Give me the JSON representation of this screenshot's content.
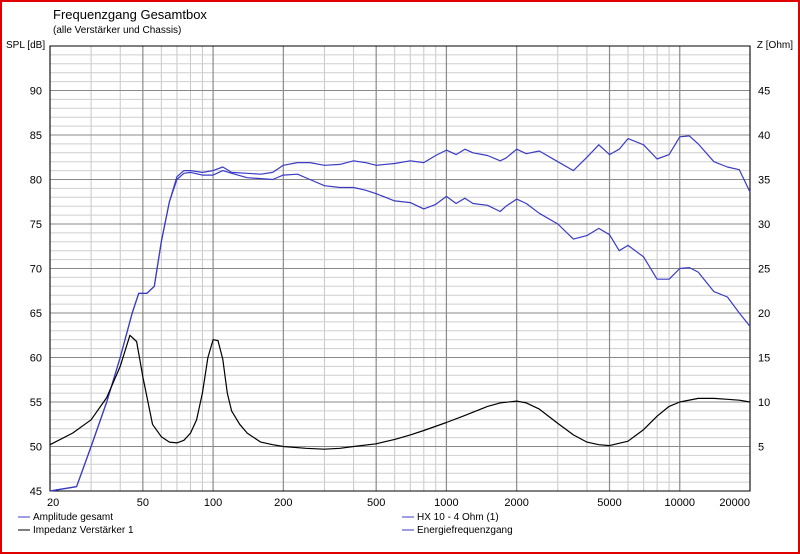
{
  "chart_data": {
    "type": "line",
    "title": "Frequenzgang Gesamtbox",
    "subtitle": "(alle Verstärker und Chassis)",
    "ylabel_left": "SPL [dB]",
    "ylabel_right": "Z [Ohm]",
    "x_scale": "log",
    "xlim": [
      20,
      20000
    ],
    "ylim_left": [
      45,
      95
    ],
    "ylim_right": [
      0,
      50
    ],
    "grid": true,
    "x_ticks": [
      20,
      50,
      100,
      200,
      500,
      1000,
      2000,
      5000,
      10000,
      20000
    ],
    "y_ticks_left": [
      45,
      50,
      55,
      60,
      65,
      70,
      75,
      80,
      85,
      90
    ],
    "y_ticks_right": [
      5,
      10,
      15,
      20,
      25,
      30,
      35,
      40,
      45
    ],
    "legend_placement": "bottom",
    "colors": {
      "amplitude": "#3b3bc4",
      "hx10": "#3b3bc4",
      "impedance": "#000000",
      "energy": "#3b3bc4",
      "frame": "#e00000"
    },
    "series": [
      {
        "name": "Amplitude gesamt",
        "axis": "left",
        "x": [
          20,
          26,
          30,
          35,
          40,
          45,
          48,
          52,
          56,
          60,
          65,
          70,
          75,
          80,
          90,
          100,
          110,
          120,
          140,
          160,
          180,
          200,
          230,
          260,
          300,
          350,
          400,
          450,
          500,
          600,
          700,
          800,
          900,
          1000,
          1100,
          1200,
          1300,
          1500,
          1700,
          1800,
          2000,
          2200,
          2500,
          3000,
          3500,
          4000,
          4500,
          5000,
          5500,
          6000,
          7000,
          8000,
          9000,
          10000,
          11000,
          12000,
          14000,
          16000,
          18000,
          20000
        ],
        "y": [
          45,
          45.5,
          50,
          55,
          60,
          65,
          67.2,
          67.2,
          68,
          73,
          77.5,
          80,
          80.7,
          80.8,
          80.5,
          80.5,
          81,
          80.7,
          80.2,
          80.1,
          80,
          80.5,
          80.6,
          80,
          79.3,
          79.1,
          79.1,
          78.8,
          78.4,
          77.6,
          77.4,
          76.7,
          77.2,
          78.1,
          77.3,
          77.9,
          77.3,
          77.1,
          76.4,
          77,
          77.8,
          77.3,
          76.2,
          75,
          73.3,
          73.7,
          74.5,
          73.8,
          72,
          72.6,
          71.3,
          68.8,
          68.8,
          70,
          70.1,
          69.6,
          67.4,
          66.8,
          65,
          63.5
        ]
      },
      {
        "name": "HX 10 - 4 Ohm (1)",
        "axis": "left",
        "x": [
          20,
          26,
          30,
          35,
          40,
          45,
          48,
          52,
          56,
          60,
          65,
          70,
          75,
          80,
          90,
          100,
          110,
          120,
          140,
          160,
          180,
          200,
          230,
          260,
          300,
          350,
          400,
          450,
          500,
          600,
          700,
          800,
          900,
          1000,
          1100,
          1200,
          1300,
          1500,
          1700,
          1800,
          2000,
          2200,
          2500,
          3000,
          3500,
          4000,
          4500,
          5000,
          5500,
          6000,
          7000,
          8000,
          9000,
          10000,
          11000,
          12000,
          14000,
          16000,
          18000,
          20000
        ],
        "y": [
          45,
          45.5,
          50,
          55,
          60,
          65,
          67.2,
          67.2,
          68,
          73,
          77.5,
          80.3,
          81,
          81,
          80.8,
          81,
          81.4,
          80.8,
          80.7,
          80.6,
          80.8,
          81.6,
          81.9,
          81.9,
          81.6,
          81.7,
          82.1,
          81.9,
          81.6,
          81.8,
          82.1,
          81.9,
          82.7,
          83.3,
          82.8,
          83.4,
          83,
          82.7,
          82.1,
          82.4,
          83.4,
          82.9,
          83.2,
          82,
          81,
          82.5,
          83.9,
          82.8,
          83.4,
          84.6,
          83.9,
          82.3,
          82.8,
          84.8,
          84.9,
          84,
          82,
          81.4,
          81.1,
          78.6
        ]
      },
      {
        "name": "Impedanz Verstärker 1",
        "axis": "right",
        "x": [
          20,
          25,
          30,
          35,
          40,
          44,
          47,
          50,
          55,
          60,
          65,
          70,
          75,
          80,
          85,
          90,
          95,
          100,
          105,
          110,
          115,
          120,
          130,
          140,
          160,
          180,
          200,
          250,
          300,
          350,
          400,
          500,
          600,
          700,
          800,
          1000,
          1200,
          1500,
          1700,
          2000,
          2200,
          2500,
          3000,
          3500,
          4000,
          4500,
          5000,
          6000,
          7000,
          8000,
          9000,
          10000,
          12000,
          14000,
          16000,
          18000,
          20000
        ],
        "y": [
          5.2,
          6.5,
          8,
          10.5,
          14,
          17.5,
          16.8,
          12.8,
          7.5,
          6.1,
          5.5,
          5.4,
          5.7,
          6.5,
          8,
          11,
          15,
          17,
          16.9,
          14.8,
          11,
          9,
          7.5,
          6.5,
          5.5,
          5.2,
          5,
          4.8,
          4.7,
          4.8,
          5,
          5.3,
          5.8,
          6.3,
          6.8,
          7.7,
          8.5,
          9.5,
          9.9,
          10.1,
          9.9,
          9.2,
          7.6,
          6.3,
          5.5,
          5.2,
          5.1,
          5.6,
          6.9,
          8.4,
          9.5,
          10,
          10.4,
          10.4,
          10.3,
          10.2,
          10
        ]
      },
      {
        "name": "Energiefrequenzgang",
        "axis": "left",
        "x": [],
        "y": []
      }
    ]
  }
}
